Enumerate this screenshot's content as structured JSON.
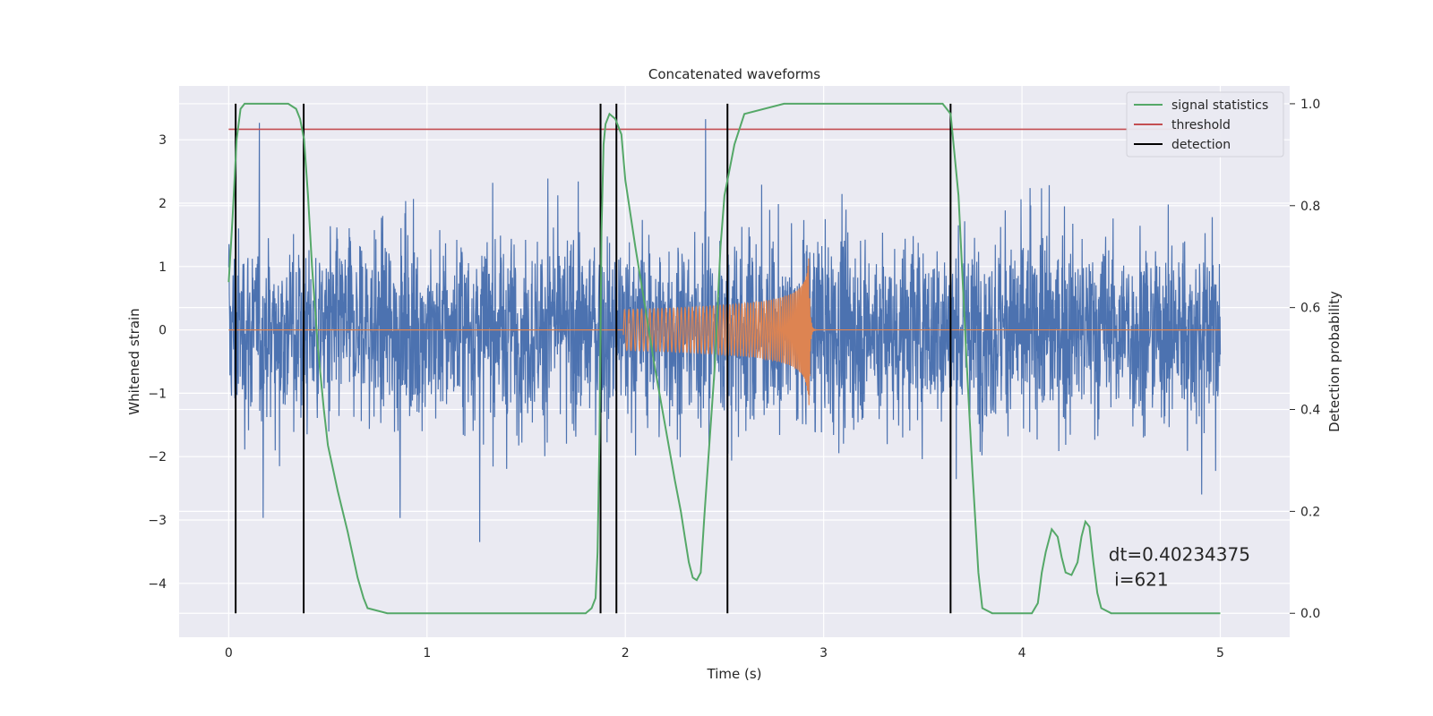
{
  "chart_data": {
    "type": "line",
    "title": "Concatenated waveforms",
    "xlabel": "Time (s)",
    "ylabel": "Whitened strain",
    "y2label": "Detection probability",
    "xlim": [
      -0.25,
      5.35
    ],
    "ylim": [
      -4.85,
      3.85
    ],
    "y2lim": [
      -0.047,
      1.035
    ],
    "xticks": [
      0,
      1,
      2,
      3,
      4,
      5
    ],
    "yticks": [
      -4,
      -3,
      -2,
      -1,
      0,
      1,
      2,
      3
    ],
    "y2ticks": [
      0.0,
      0.2,
      0.4,
      0.6,
      0.8,
      1.0
    ],
    "grid": true,
    "legend_position": "top-right",
    "colors": {
      "strain": "#4c72b0",
      "template": "#dd8452",
      "statistics": "#55a868",
      "threshold": "#c44e52",
      "detection": "#000000",
      "axes_bg": "#eaeaf2",
      "grid": "#ffffff"
    },
    "series": [
      {
        "name": "signal statistics",
        "axis": "right",
        "x": [
          0.0,
          0.02,
          0.04,
          0.06,
          0.08,
          0.1,
          0.15,
          0.2,
          0.3,
          0.34,
          0.36,
          0.38,
          0.4,
          0.42,
          0.45,
          0.48,
          0.5,
          0.55,
          0.6,
          0.65,
          0.68,
          0.7,
          0.8,
          1.0,
          1.5,
          1.8,
          1.83,
          1.85,
          1.86,
          1.87,
          1.88,
          1.89,
          1.9,
          1.92,
          1.95,
          1.98,
          2.0,
          2.05,
          2.1,
          2.15,
          2.2,
          2.25,
          2.28,
          2.3,
          2.32,
          2.34,
          2.36,
          2.38,
          2.4,
          2.45,
          2.48,
          2.5,
          2.52,
          2.55,
          2.6,
          2.8,
          3.2,
          3.6,
          3.64,
          3.68,
          3.72,
          3.75,
          3.78,
          3.8,
          3.85,
          4.0,
          4.05,
          4.08,
          4.1,
          4.12,
          4.15,
          4.18,
          4.2,
          4.22,
          4.25,
          4.28,
          4.3,
          4.32,
          4.34,
          4.36,
          4.38,
          4.4,
          4.45,
          4.5,
          4.6,
          5.0
        ],
        "values": [
          0.65,
          0.78,
          0.93,
          0.99,
          1.0,
          1.0,
          1.0,
          1.0,
          1.0,
          0.99,
          0.97,
          0.93,
          0.82,
          0.68,
          0.52,
          0.4,
          0.33,
          0.24,
          0.16,
          0.07,
          0.03,
          0.01,
          0.0,
          0.0,
          0.0,
          0.0,
          0.01,
          0.03,
          0.12,
          0.35,
          0.75,
          0.92,
          0.96,
          0.98,
          0.97,
          0.94,
          0.85,
          0.72,
          0.6,
          0.48,
          0.37,
          0.26,
          0.2,
          0.15,
          0.1,
          0.07,
          0.065,
          0.08,
          0.2,
          0.48,
          0.72,
          0.82,
          0.86,
          0.92,
          0.98,
          1.0,
          1.0,
          1.0,
          0.98,
          0.82,
          0.5,
          0.28,
          0.08,
          0.01,
          0.0,
          0.0,
          0.0,
          0.02,
          0.08,
          0.12,
          0.165,
          0.15,
          0.11,
          0.08,
          0.075,
          0.1,
          0.15,
          0.18,
          0.17,
          0.1,
          0.04,
          0.01,
          0.0,
          0.0,
          0.0,
          0.0
        ]
      },
      {
        "name": "threshold",
        "axis": "right",
        "x": [
          0.0,
          5.0
        ],
        "values": [
          0.95,
          0.95
        ]
      },
      {
        "name": "detection",
        "axis": "right",
        "x": [
          0.035,
          0.378,
          1.875,
          1.955,
          2.515,
          3.64
        ],
        "values": [
          1.0,
          1.0,
          1.0,
          1.0,
          1.0,
          1.0
        ]
      }
    ],
    "annotation": {
      "line1": "dt=0.40234375",
      "line2": " i=621",
      "x": 4.5,
      "y": -3.7
    }
  }
}
